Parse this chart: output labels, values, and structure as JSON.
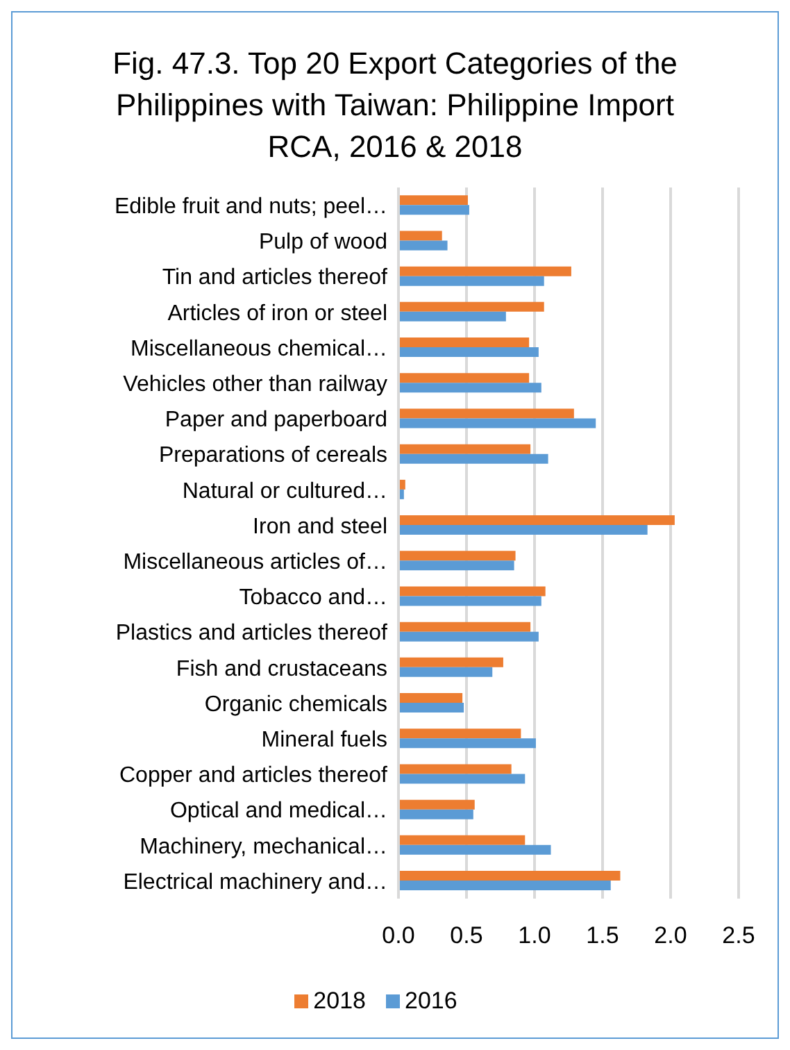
{
  "chart_data": {
    "type": "bar",
    "orientation": "horizontal",
    "title": "Fig. 47.3. Top 20 Export Categories of the Philippines with Taiwan: Philippine Import RCA, 2016 & 2018",
    "categories": [
      "Edible fruit and nuts; peel…",
      "Pulp of wood",
      "Tin and articles thereof",
      "Articles of iron or steel",
      "Miscellaneous chemical…",
      "Vehicles other than railway",
      "Paper and paperboard",
      "Preparations of cereals",
      "Natural or cultured…",
      "Iron and steel",
      "Miscellaneous articles of…",
      "Tobacco and…",
      "Plastics and articles thereof",
      "Fish and crustaceans",
      "Organic chemicals",
      "Mineral fuels",
      "Copper and articles thereof",
      "Optical and medical…",
      "Machinery, mechanical…",
      "Electrical machinery and…"
    ],
    "series": [
      {
        "name": "2018",
        "color": "#ed7d31",
        "values": [
          0.51,
          0.32,
          1.27,
          1.07,
          0.96,
          0.96,
          1.29,
          0.97,
          0.05,
          2.03,
          0.86,
          1.08,
          0.97,
          0.77,
          0.47,
          0.9,
          0.83,
          0.56,
          0.93,
          1.63
        ]
      },
      {
        "name": "2016",
        "color": "#5b9bd5",
        "values": [
          0.52,
          0.36,
          1.07,
          0.79,
          1.03,
          1.05,
          1.45,
          1.1,
          0.04,
          1.83,
          0.85,
          1.05,
          1.03,
          0.69,
          0.48,
          1.01,
          0.93,
          0.55,
          1.12,
          1.56
        ]
      }
    ],
    "xlim": [
      0,
      2.5
    ],
    "xticks": [
      {
        "value": 0,
        "label": "0.0"
      },
      0.5,
      {
        "value": 1,
        "label": "1.0"
      },
      1.5,
      {
        "value": 2,
        "label": "2.0"
      },
      2.5
    ],
    "grid": "x",
    "legend": "bottom"
  }
}
